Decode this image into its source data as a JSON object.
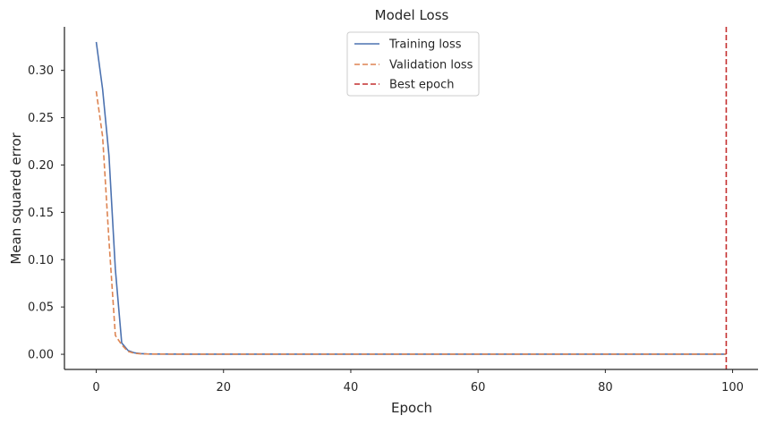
{
  "chart_data": {
    "type": "line",
    "title": "Model Loss",
    "xlabel": "Epoch",
    "ylabel": "Mean squared error",
    "xlim": [
      -5,
      104
    ],
    "ylim": [
      -0.016,
      0.346
    ],
    "xticks": [
      0,
      20,
      40,
      60,
      80,
      100
    ],
    "xtick_labels": [
      "0",
      "20",
      "40",
      "60",
      "80",
      "100"
    ],
    "yticks": [
      0.0,
      0.05,
      0.1,
      0.15,
      0.2,
      0.25,
      0.3
    ],
    "ytick_labels": [
      "0.00",
      "0.05",
      "0.10",
      "0.15",
      "0.20",
      "0.25",
      "0.30"
    ],
    "grid": false,
    "legend_position": "top-center",
    "series": [
      {
        "name": "Training loss",
        "style": "solid",
        "color": "#4c72b0",
        "x": [
          0,
          1,
          2,
          3,
          4,
          5,
          6,
          7,
          8,
          10,
          15,
          20,
          30,
          40,
          50,
          60,
          70,
          80,
          90,
          99
        ],
        "y": [
          0.33,
          0.28,
          0.21,
          0.09,
          0.012,
          0.004,
          0.0015,
          0.0007,
          0.0004,
          0.0002,
          0.0001,
          0.0001,
          0.0001,
          0.0001,
          0.0001,
          0.0001,
          0.0001,
          0.0001,
          0.0001,
          0.0001
        ]
      },
      {
        "name": "Validation loss",
        "style": "dashed",
        "color": "#dd8452",
        "x": [
          0,
          1,
          2,
          3,
          4,
          5,
          6,
          7,
          8,
          10,
          15,
          20,
          30,
          40,
          50,
          60,
          70,
          80,
          90,
          99
        ],
        "y": [
          0.278,
          0.23,
          0.12,
          0.02,
          0.01,
          0.003,
          0.001,
          0.0005,
          0.0003,
          0.0002,
          0.0001,
          0.0001,
          0.0001,
          0.0001,
          0.0001,
          0.0001,
          0.0001,
          0.0001,
          0.0001,
          0.0001
        ]
      }
    ],
    "vlines": [
      {
        "name": "Best epoch",
        "x": 99,
        "style": "dashed",
        "color": "#c42e2e"
      }
    ]
  }
}
